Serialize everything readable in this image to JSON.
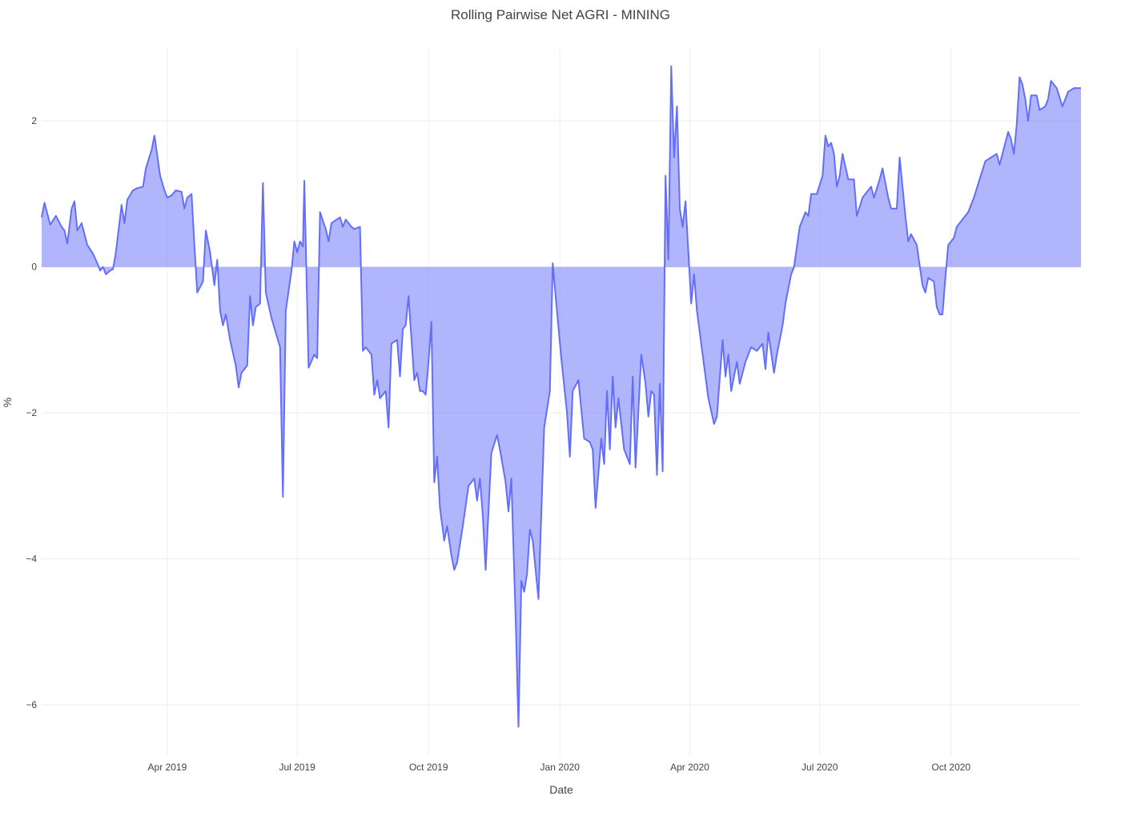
{
  "chart_data": {
    "type": "area",
    "title": "Rolling Pairwise Net AGRI - MINING",
    "xlabel": "Date",
    "ylabel": "%",
    "x_axis_type": "date",
    "xlim": [
      "2019-01-03",
      "2020-12-31"
    ],
    "ylim": [
      -6.7,
      3.0
    ],
    "x_ticks": [
      {
        "date": "2019-04-01",
        "label": "Apr 2019"
      },
      {
        "date": "2019-07-01",
        "label": "Jul 2019"
      },
      {
        "date": "2019-10-01",
        "label": "Oct 2019"
      },
      {
        "date": "2020-01-01",
        "label": "Jan 2020"
      },
      {
        "date": "2020-04-01",
        "label": "Apr 2020"
      },
      {
        "date": "2020-07-01",
        "label": "Jul 2020"
      },
      {
        "date": "2020-10-01",
        "label": "Oct 2020"
      }
    ],
    "y_ticks": [
      {
        "value": 2,
        "label": "2"
      },
      {
        "value": 0,
        "label": "0"
      },
      {
        "value": -2,
        "label": "−2"
      },
      {
        "value": -4,
        "label": "−4"
      },
      {
        "value": -6,
        "label": "−6"
      }
    ],
    "grid": true,
    "legend": "none",
    "fill": "tozeroy",
    "line_color": "#636efa",
    "fill_color": "#636efa",
    "fill_opacity": 0.5,
    "series": [
      {
        "points": [
          [
            "2019-01-03",
            0.68
          ],
          [
            "2019-01-05",
            0.88
          ],
          [
            "2019-01-09",
            0.58
          ],
          [
            "2019-01-13",
            0.7
          ],
          [
            "2019-01-17",
            0.55
          ],
          [
            "2019-01-19",
            0.5
          ],
          [
            "2019-01-21",
            0.32
          ],
          [
            "2019-01-24",
            0.8
          ],
          [
            "2019-01-26",
            0.9
          ],
          [
            "2019-01-28",
            0.5
          ],
          [
            "2019-01-31",
            0.6
          ],
          [
            "2019-02-04",
            0.3
          ],
          [
            "2019-02-08",
            0.18
          ],
          [
            "2019-02-11",
            0.05
          ],
          [
            "2019-02-13",
            -0.05
          ],
          [
            "2019-02-15",
            0.0
          ],
          [
            "2019-02-17",
            -0.1
          ],
          [
            "2019-02-20",
            -0.05
          ],
          [
            "2019-02-22",
            -0.03
          ],
          [
            "2019-02-24",
            0.2
          ],
          [
            "2019-02-28",
            0.85
          ],
          [
            "2019-03-02",
            0.6
          ],
          [
            "2019-03-04",
            0.92
          ],
          [
            "2019-03-08",
            1.05
          ],
          [
            "2019-03-11",
            1.08
          ],
          [
            "2019-03-15",
            1.1
          ],
          [
            "2019-03-17",
            1.35
          ],
          [
            "2019-03-21",
            1.6
          ],
          [
            "2019-03-23",
            1.8
          ],
          [
            "2019-03-27",
            1.25
          ],
          [
            "2019-03-30",
            1.05
          ],
          [
            "2019-04-01",
            0.95
          ],
          [
            "2019-04-04",
            0.98
          ],
          [
            "2019-04-07",
            1.05
          ],
          [
            "2019-04-11",
            1.03
          ],
          [
            "2019-04-13",
            0.8
          ],
          [
            "2019-04-15",
            0.95
          ],
          [
            "2019-04-18",
            1.0
          ],
          [
            "2019-04-20",
            0.3
          ],
          [
            "2019-04-22",
            -0.35
          ],
          [
            "2019-04-26",
            -0.2
          ],
          [
            "2019-04-28",
            0.5
          ],
          [
            "2019-05-01",
            0.2
          ],
          [
            "2019-05-04",
            -0.25
          ],
          [
            "2019-05-06",
            0.1
          ],
          [
            "2019-05-08",
            -0.6
          ],
          [
            "2019-05-10",
            -0.8
          ],
          [
            "2019-05-12",
            -0.65
          ],
          [
            "2019-05-15",
            -1.0
          ],
          [
            "2019-05-19",
            -1.35
          ],
          [
            "2019-05-21",
            -1.65
          ],
          [
            "2019-05-23",
            -1.45
          ],
          [
            "2019-05-27",
            -1.35
          ],
          [
            "2019-05-29",
            -0.4
          ],
          [
            "2019-05-31",
            -0.8
          ],
          [
            "2019-06-02",
            -0.55
          ],
          [
            "2019-06-05",
            -0.5
          ],
          [
            "2019-06-07",
            1.15
          ],
          [
            "2019-06-09",
            -0.35
          ],
          [
            "2019-06-13",
            -0.7
          ],
          [
            "2019-06-19",
            -1.1
          ],
          [
            "2019-06-21",
            -3.15
          ],
          [
            "2019-06-23",
            -0.6
          ],
          [
            "2019-06-27",
            -0.05
          ],
          [
            "2019-06-29",
            0.35
          ],
          [
            "2019-07-01",
            0.2
          ],
          [
            "2019-07-03",
            0.35
          ],
          [
            "2019-07-05",
            0.28
          ],
          [
            "2019-07-06",
            1.18
          ],
          [
            "2019-07-09",
            -1.38
          ],
          [
            "2019-07-13",
            -1.2
          ],
          [
            "2019-07-15",
            -1.25
          ],
          [
            "2019-07-17",
            0.75
          ],
          [
            "2019-07-21",
            0.52
          ],
          [
            "2019-07-23",
            0.35
          ],
          [
            "2019-07-25",
            0.6
          ],
          [
            "2019-07-31",
            0.68
          ],
          [
            "2019-08-02",
            0.55
          ],
          [
            "2019-08-04",
            0.65
          ],
          [
            "2019-08-08",
            0.55
          ],
          [
            "2019-08-10",
            0.52
          ],
          [
            "2019-08-14",
            0.55
          ],
          [
            "2019-08-16",
            -1.15
          ],
          [
            "2019-08-18",
            -1.1
          ],
          [
            "2019-08-22",
            -1.2
          ],
          [
            "2019-08-24",
            -1.75
          ],
          [
            "2019-08-26",
            -1.55
          ],
          [
            "2019-08-28",
            -1.8
          ],
          [
            "2019-09-01",
            -1.7
          ],
          [
            "2019-09-03",
            -2.2
          ],
          [
            "2019-09-05",
            -1.05
          ],
          [
            "2019-09-09",
            -1.0
          ],
          [
            "2019-09-11",
            -1.5
          ],
          [
            "2019-09-13",
            -0.85
          ],
          [
            "2019-09-15",
            -0.8
          ],
          [
            "2019-09-17",
            -0.4
          ],
          [
            "2019-09-21",
            -1.55
          ],
          [
            "2019-09-23",
            -1.45
          ],
          [
            "2019-09-25",
            -1.7
          ],
          [
            "2019-09-27",
            -1.7
          ],
          [
            "2019-09-29",
            -1.75
          ],
          [
            "2019-10-01",
            -1.3
          ],
          [
            "2019-10-03",
            -0.75
          ],
          [
            "2019-10-05",
            -2.95
          ],
          [
            "2019-10-07",
            -2.6
          ],
          [
            "2019-10-09",
            -3.3
          ],
          [
            "2019-10-12",
            -3.75
          ],
          [
            "2019-10-14",
            -3.55
          ],
          [
            "2019-10-17",
            -3.95
          ],
          [
            "2019-10-19",
            -4.15
          ],
          [
            "2019-10-21",
            -4.05
          ],
          [
            "2019-10-25",
            -3.55
          ],
          [
            "2019-10-29",
            -3.0
          ],
          [
            "2019-11-02",
            -2.9
          ],
          [
            "2019-11-04",
            -3.2
          ],
          [
            "2019-11-06",
            -2.9
          ],
          [
            "2019-11-08",
            -3.4
          ],
          [
            "2019-11-10",
            -4.15
          ],
          [
            "2019-11-14",
            -2.55
          ],
          [
            "2019-11-18",
            -2.3
          ],
          [
            "2019-11-20",
            -2.5
          ],
          [
            "2019-11-24",
            -2.95
          ],
          [
            "2019-11-26",
            -3.35
          ],
          [
            "2019-11-28",
            -2.9
          ],
          [
            "2019-12-01",
            -4.8
          ],
          [
            "2019-12-03",
            -6.3
          ],
          [
            "2019-12-05",
            -4.3
          ],
          [
            "2019-12-07",
            -4.45
          ],
          [
            "2019-12-09",
            -4.2
          ],
          [
            "2019-12-11",
            -3.6
          ],
          [
            "2019-12-13",
            -3.75
          ],
          [
            "2019-12-17",
            -4.55
          ],
          [
            "2019-12-21",
            -2.2
          ],
          [
            "2019-12-25",
            -1.7
          ],
          [
            "2019-12-27",
            0.05
          ],
          [
            "2019-12-29",
            -0.4
          ],
          [
            "2020-01-02",
            -1.25
          ],
          [
            "2020-01-06",
            -2.0
          ],
          [
            "2020-01-08",
            -2.6
          ],
          [
            "2020-01-10",
            -1.7
          ],
          [
            "2020-01-14",
            -1.55
          ],
          [
            "2020-01-18",
            -2.35
          ],
          [
            "2020-01-22",
            -2.4
          ],
          [
            "2020-01-24",
            -2.5
          ],
          [
            "2020-01-26",
            -3.3
          ],
          [
            "2020-01-30",
            -2.35
          ],
          [
            "2020-02-01",
            -2.7
          ],
          [
            "2020-02-03",
            -1.7
          ],
          [
            "2020-02-05",
            -2.5
          ],
          [
            "2020-02-07",
            -1.5
          ],
          [
            "2020-02-09",
            -2.2
          ],
          [
            "2020-02-11",
            -1.8
          ],
          [
            "2020-02-15",
            -2.5
          ],
          [
            "2020-02-19",
            -2.7
          ],
          [
            "2020-02-21",
            -1.5
          ],
          [
            "2020-02-23",
            -2.75
          ],
          [
            "2020-02-27",
            -1.2
          ],
          [
            "2020-03-01",
            -1.6
          ],
          [
            "2020-03-03",
            -2.05
          ],
          [
            "2020-03-05",
            -1.7
          ],
          [
            "2020-03-07",
            -1.75
          ],
          [
            "2020-03-09",
            -2.85
          ],
          [
            "2020-03-11",
            -1.6
          ],
          [
            "2020-03-13",
            -2.8
          ],
          [
            "2020-03-15",
            1.25
          ],
          [
            "2020-03-17",
            0.1
          ],
          [
            "2020-03-19",
            2.75
          ],
          [
            "2020-03-21",
            1.5
          ],
          [
            "2020-03-23",
            2.2
          ],
          [
            "2020-03-25",
            0.8
          ],
          [
            "2020-03-27",
            0.55
          ],
          [
            "2020-03-29",
            0.9
          ],
          [
            "2020-03-31",
            0.2
          ],
          [
            "2020-04-02",
            -0.5
          ],
          [
            "2020-04-04",
            -0.1
          ],
          [
            "2020-04-06",
            -0.6
          ],
          [
            "2020-04-10",
            -1.2
          ],
          [
            "2020-04-14",
            -1.8
          ],
          [
            "2020-04-18",
            -2.15
          ],
          [
            "2020-04-20",
            -2.05
          ],
          [
            "2020-04-24",
            -1.0
          ],
          [
            "2020-04-26",
            -1.5
          ],
          [
            "2020-04-28",
            -1.2
          ],
          [
            "2020-04-30",
            -1.7
          ],
          [
            "2020-05-04",
            -1.3
          ],
          [
            "2020-05-06",
            -1.6
          ],
          [
            "2020-05-10",
            -1.3
          ],
          [
            "2020-05-14",
            -1.1
          ],
          [
            "2020-05-18",
            -1.15
          ],
          [
            "2020-05-22",
            -1.05
          ],
          [
            "2020-05-24",
            -1.4
          ],
          [
            "2020-05-26",
            -0.9
          ],
          [
            "2020-05-30",
            -1.45
          ],
          [
            "2020-06-01",
            -1.2
          ],
          [
            "2020-06-05",
            -0.8
          ],
          [
            "2020-06-07",
            -0.5
          ],
          [
            "2020-06-11",
            -0.1
          ],
          [
            "2020-06-13",
            0.0
          ],
          [
            "2020-06-17",
            0.55
          ],
          [
            "2020-06-21",
            0.75
          ],
          [
            "2020-06-23",
            0.7
          ],
          [
            "2020-06-25",
            1.0
          ],
          [
            "2020-06-29",
            1.0
          ],
          [
            "2020-07-03",
            1.25
          ],
          [
            "2020-07-05",
            1.8
          ],
          [
            "2020-07-07",
            1.65
          ],
          [
            "2020-07-09",
            1.7
          ],
          [
            "2020-07-11",
            1.55
          ],
          [
            "2020-07-13",
            1.1
          ],
          [
            "2020-07-15",
            1.25
          ],
          [
            "2020-07-17",
            1.55
          ],
          [
            "2020-07-21",
            1.2
          ],
          [
            "2020-07-25",
            1.2
          ],
          [
            "2020-07-27",
            0.7
          ],
          [
            "2020-07-31",
            0.95
          ],
          [
            "2020-08-04",
            1.05
          ],
          [
            "2020-08-06",
            1.1
          ],
          [
            "2020-08-08",
            0.95
          ],
          [
            "2020-08-12",
            1.2
          ],
          [
            "2020-08-14",
            1.35
          ],
          [
            "2020-08-18",
            0.95
          ],
          [
            "2020-08-20",
            0.8
          ],
          [
            "2020-08-24",
            0.8
          ],
          [
            "2020-08-26",
            1.5
          ],
          [
            "2020-08-30",
            0.7
          ],
          [
            "2020-09-01",
            0.35
          ],
          [
            "2020-09-03",
            0.45
          ],
          [
            "2020-09-07",
            0.3
          ],
          [
            "2020-09-11",
            -0.25
          ],
          [
            "2020-09-13",
            -0.35
          ],
          [
            "2020-09-15",
            -0.15
          ],
          [
            "2020-09-19",
            -0.2
          ],
          [
            "2020-09-21",
            -0.55
          ],
          [
            "2020-09-23",
            -0.65
          ],
          [
            "2020-09-25",
            -0.65
          ],
          [
            "2020-09-27",
            -0.15
          ],
          [
            "2020-09-29",
            0.3
          ],
          [
            "2020-10-03",
            0.4
          ],
          [
            "2020-10-05",
            0.55
          ],
          [
            "2020-10-09",
            0.65
          ],
          [
            "2020-10-13",
            0.75
          ],
          [
            "2020-10-17",
            0.95
          ],
          [
            "2020-10-21",
            1.2
          ],
          [
            "2020-10-25",
            1.45
          ],
          [
            "2020-10-29",
            1.5
          ],
          [
            "2020-11-02",
            1.55
          ],
          [
            "2020-11-04",
            1.4
          ],
          [
            "2020-11-08",
            1.7
          ],
          [
            "2020-11-10",
            1.85
          ],
          [
            "2020-11-12",
            1.75
          ],
          [
            "2020-11-14",
            1.55
          ],
          [
            "2020-11-16",
            1.95
          ],
          [
            "2020-11-18",
            2.6
          ],
          [
            "2020-11-20",
            2.5
          ],
          [
            "2020-11-22",
            2.3
          ],
          [
            "2020-11-24",
            2.0
          ],
          [
            "2020-11-26",
            2.35
          ],
          [
            "2020-11-30",
            2.35
          ],
          [
            "2020-12-02",
            2.15
          ],
          [
            "2020-12-06",
            2.2
          ],
          [
            "2020-12-08",
            2.3
          ],
          [
            "2020-12-10",
            2.55
          ],
          [
            "2020-12-14",
            2.45
          ],
          [
            "2020-12-18",
            2.2
          ],
          [
            "2020-12-22",
            2.4
          ],
          [
            "2020-12-26",
            2.45
          ],
          [
            "2020-12-31",
            2.45
          ]
        ]
      }
    ]
  }
}
